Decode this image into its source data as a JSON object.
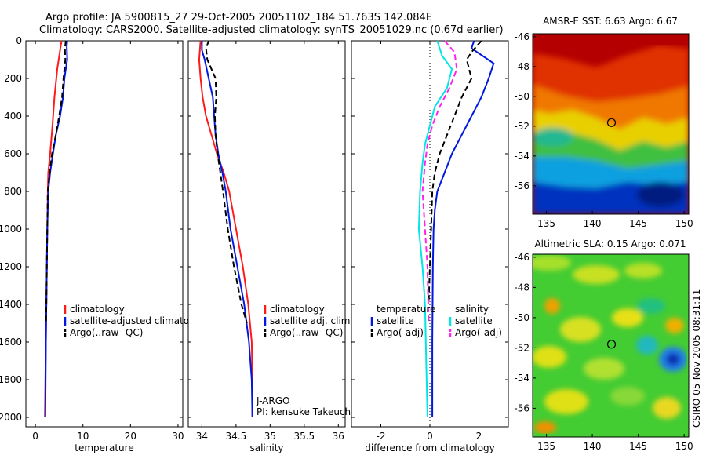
{
  "header": {
    "line1": "Argo profile: JA 5900815_27 29-Oct-2005 20051102_184 51.763S 142.084E",
    "line2": "Climatology: CARS2000. Satellite-adjusted climatology: synTS_20051029.nc (0.67d earlier)"
  },
  "credit": "CSIRO 05-Nov-2005 08:31:11",
  "colors": {
    "climatology": "#ff1a1a",
    "satellite": "#0018e0",
    "argo": "#000000",
    "temp_diff": "#00e5e5",
    "sal_diff_argo": "#ff22ee",
    "zero_line": "#000000"
  },
  "chart_data": [
    {
      "type": "line",
      "xlabel": "temperature",
      "ylabel": "",
      "xlim": [
        -2,
        31
      ],
      "ylim": [
        2050,
        0
      ],
      "x_ticks": [
        0,
        10,
        20,
        30
      ],
      "y_ticks": [
        0,
        200,
        400,
        600,
        800,
        1000,
        1200,
        1400,
        1600,
        1800,
        2000
      ],
      "legend": [
        "climatology",
        "satellite-adjusted climatology",
        "Argo(..raw -QC)"
      ],
      "series": [
        {
          "name": "climatology",
          "style": "solid",
          "color_key": "climatology",
          "x": [
            5.5,
            5.2,
            4.6,
            4.0,
            3.6,
            3.1,
            2.7,
            2.6,
            2.5,
            2.4,
            2.3,
            2.2,
            2.1,
            2.0
          ],
          "y": [
            0,
            50,
            150,
            300,
            450,
            600,
            700,
            800,
            1000,
            1200,
            1400,
            1600,
            1800,
            2000
          ]
        },
        {
          "name": "satellite-adjusted climatology",
          "style": "solid",
          "color_key": "satellite",
          "x": [
            6.7,
            6.6,
            6.7,
            6.1,
            5.8,
            5.2,
            4.3,
            3.7,
            3.1,
            2.7,
            2.5,
            2.4,
            2.3,
            2.2,
            2.1
          ],
          "y": [
            0,
            30,
            100,
            200,
            300,
            400,
            500,
            600,
            700,
            800,
            1000,
            1200,
            1400,
            1600,
            2000
          ]
        },
        {
          "name": "Argo(..raw -QC)",
          "style": "dashed",
          "color_key": "argo",
          "x": [
            6.4,
            6.2,
            6.3,
            5.9,
            5.6,
            5.0,
            4.3,
            3.5,
            3.0,
            2.6,
            2.5,
            2.4,
            2.3,
            2.2
          ],
          "y": [
            0,
            40,
            100,
            200,
            300,
            400,
            500,
            600,
            700,
            800,
            1000,
            1200,
            1400,
            1500
          ]
        }
      ]
    },
    {
      "type": "line",
      "xlabel": "salinity",
      "ylabel": "",
      "xlim": [
        33.8,
        36.1
      ],
      "ylim": [
        2050,
        0
      ],
      "x_ticks": [
        34,
        34.5,
        35,
        35.5,
        36
      ],
      "legend": [
        "climatology",
        "satellite adj. clim.",
        "Argo(..raw -QC)"
      ],
      "annotation": [
        "J-ARGO",
        "PI: kensuke Takeuchi"
      ],
      "series": [
        {
          "name": "climatology",
          "style": "solid",
          "color_key": "climatology",
          "x": [
            33.98,
            33.97,
            33.96,
            33.98,
            34.01,
            34.06,
            34.14,
            34.22,
            34.32,
            34.4,
            34.5,
            34.6,
            34.68,
            34.73,
            34.74,
            34.74
          ],
          "y": [
            0,
            50,
            100,
            200,
            300,
            400,
            500,
            600,
            700,
            800,
            1000,
            1200,
            1400,
            1600,
            1800,
            2000
          ]
        },
        {
          "name": "satellite adj. clim.",
          "style": "solid",
          "color_key": "satellite",
          "x": [
            34.0,
            34.0,
            34.04,
            34.1,
            34.16,
            34.18,
            34.2,
            34.24,
            34.3,
            34.35,
            34.42,
            34.52,
            34.62,
            34.69,
            34.73,
            34.74
          ],
          "y": [
            0,
            50,
            100,
            200,
            300,
            400,
            500,
            600,
            700,
            800,
            1000,
            1200,
            1400,
            1600,
            1800,
            2000
          ]
        },
        {
          "name": "Argo(..raw -QC)",
          "style": "dashed",
          "color_key": "argo",
          "x": [
            34.1,
            34.06,
            34.08,
            34.2,
            34.21,
            34.19,
            34.2,
            34.23,
            34.27,
            34.31,
            34.38,
            34.47,
            34.58,
            34.66
          ],
          "y": [
            0,
            40,
            100,
            200,
            300,
            400,
            500,
            600,
            700,
            800,
            1000,
            1200,
            1400,
            1500
          ]
        }
      ]
    },
    {
      "type": "line",
      "xlabel": "difference from climatology",
      "ylabel": "",
      "xlim": [
        -3.2,
        3.2
      ],
      "ylim": [
        2050,
        0
      ],
      "x_ticks": [
        -2,
        0,
        2
      ],
      "legend_titles": [
        "temperature",
        "salinity"
      ],
      "legend": [
        "satellite",
        "Argo(-adj)",
        "satellite",
        "Argo(-adj)"
      ],
      "series": [
        {
          "name": "temperature satellite",
          "style": "solid",
          "color_key": "satellite",
          "x": [
            1.8,
            1.7,
            2.6,
            2.4,
            2.1,
            1.7,
            1.3,
            0.9,
            0.6,
            0.3,
            0.2,
            0.15,
            0.12,
            0.1,
            0.1
          ],
          "y": [
            0,
            40,
            120,
            200,
            300,
            400,
            500,
            600,
            700,
            800,
            900,
            1000,
            1200,
            1600,
            2000
          ]
        },
        {
          "name": "temperature Argo(-adj)",
          "style": "dashed",
          "color_key": "argo",
          "x": [
            2.1,
            1.7,
            1.5,
            1.7,
            1.3,
            1.0,
            0.7,
            0.4,
            0.2,
            0.1,
            0.05,
            0.0,
            -0.05
          ],
          "y": [
            0,
            60,
            100,
            200,
            300,
            400,
            500,
            600,
            700,
            800,
            1000,
            1200,
            1400
          ]
        },
        {
          "name": "salinity satellite",
          "style": "solid",
          "color_key": "temp_diff",
          "x": [
            0.3,
            0.5,
            0.9,
            0.7,
            0.2,
            0.0,
            -0.2,
            -0.3,
            -0.4,
            -0.45,
            -0.3,
            -0.2,
            -0.15,
            -0.1
          ],
          "y": [
            0,
            80,
            150,
            250,
            350,
            450,
            550,
            650,
            800,
            1000,
            1200,
            1400,
            1700,
            2000
          ]
        },
        {
          "name": "salinity Argo(-adj)",
          "style": "dashed",
          "color_key": "sal_diff_argo",
          "x": [
            0.6,
            1.0,
            1.1,
            0.8,
            0.4,
            0.1,
            -0.1,
            -0.2,
            -0.3,
            -0.2,
            -0.1,
            -0.05
          ],
          "y": [
            0,
            60,
            150,
            250,
            350,
            450,
            550,
            650,
            800,
            1000,
            1200,
            1500
          ]
        }
      ]
    },
    {
      "type": "heatmap",
      "title": "AMSR-E SST: 6.63 Argo: 6.67",
      "xlim": [
        133.5,
        150.5
      ],
      "ylim": [
        -57.9,
        -45.8
      ],
      "x_ticks": [
        135,
        140,
        145,
        150
      ],
      "y_ticks": [
        -46,
        -48,
        -50,
        -52,
        -54,
        -56
      ],
      "marker": {
        "lon": 142.084,
        "lat": -51.763
      }
    },
    {
      "type": "heatmap",
      "title": "Altimetric SLA: 0.15 Argo: 0.071",
      "xlim": [
        133.5,
        150.5
      ],
      "ylim": [
        -57.9,
        -45.8
      ],
      "x_ticks": [
        135,
        140,
        145,
        150
      ],
      "y_ticks": [
        -46,
        -48,
        -50,
        -52,
        -54,
        -56
      ],
      "marker": {
        "lon": 142.084,
        "lat": -51.763
      }
    }
  ]
}
